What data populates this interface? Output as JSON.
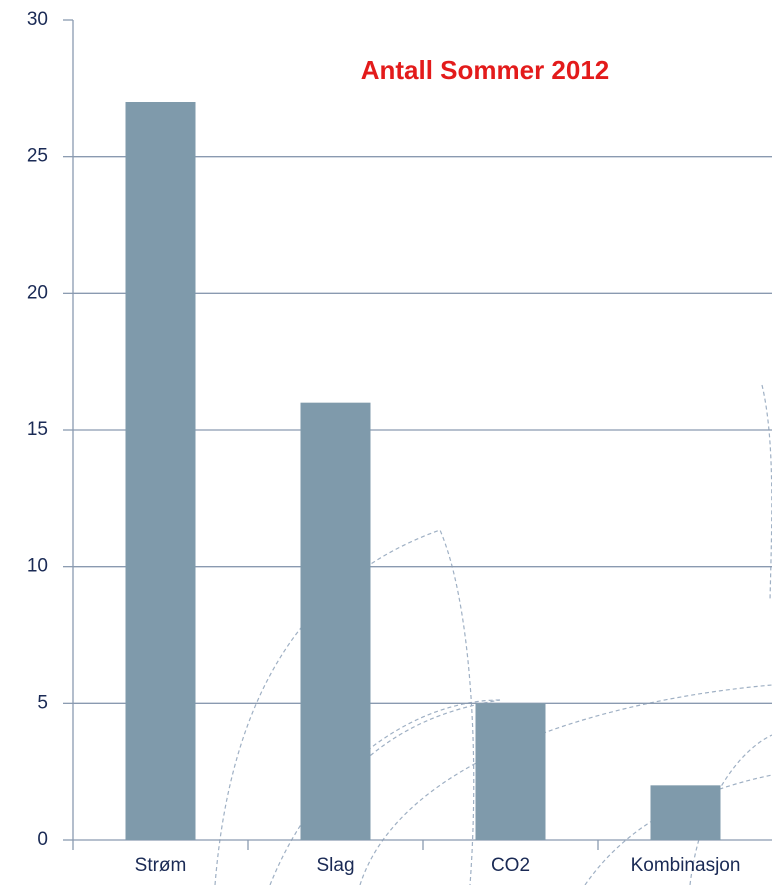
{
  "chart_data": {
    "type": "bar",
    "title": "Antall Sommer 2012",
    "categories": [
      "Strøm",
      "Slag",
      "CO2",
      "Kombinasjon"
    ],
    "values": [
      27,
      16,
      5,
      2
    ],
    "color": "#7f9aab",
    "title_color": "#e31b1b",
    "ylim": [
      0,
      30
    ],
    "yticks": [
      0,
      5,
      10,
      15,
      20,
      25,
      30
    ],
    "grid": true
  }
}
